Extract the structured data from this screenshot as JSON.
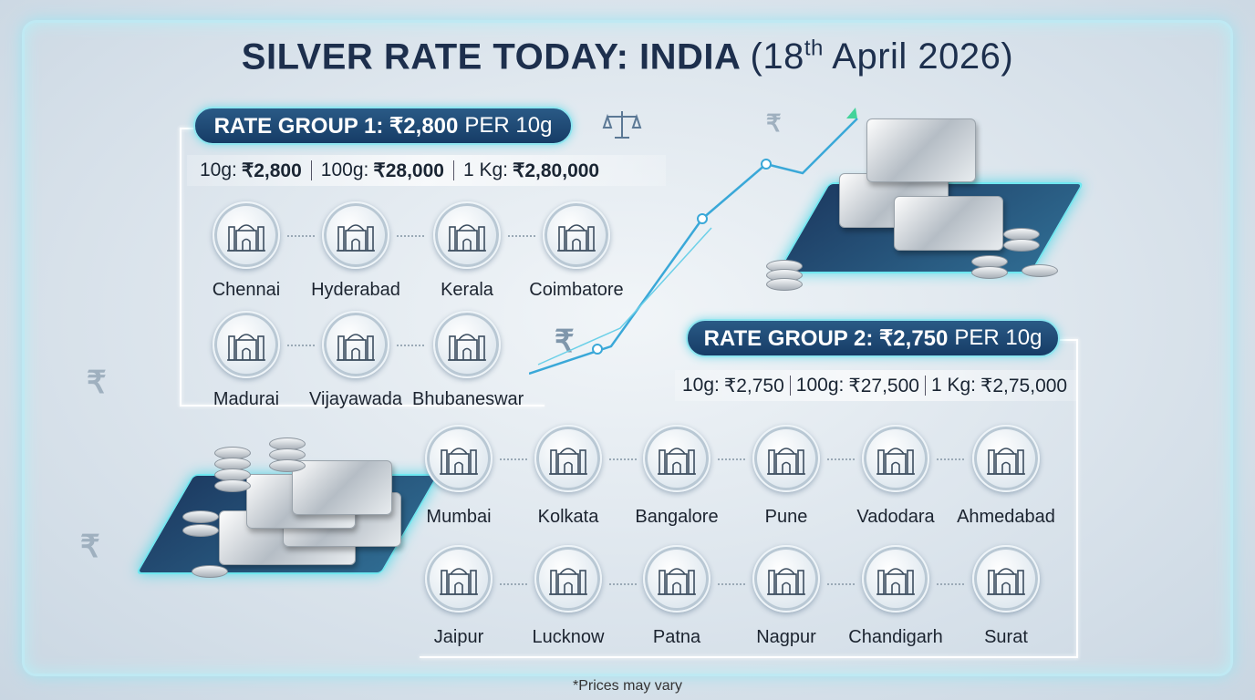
{
  "title": {
    "main": "SILVER RATE TODAY: INDIA",
    "date_prefix": "(18",
    "date_sup": "th",
    "date_suffix": " April 2026)"
  },
  "group1": {
    "label": "RATE GROUP 1: ₹2,800",
    "unit": "PER 10g",
    "prices": [
      {
        "k": "10g:",
        "v": "₹2,800"
      },
      {
        "k": "100g:",
        "v": "₹28,000"
      },
      {
        "k": "1 Kg:",
        "v": "₹2,80,000"
      }
    ],
    "cities": [
      "Chennai",
      "Hyderabad",
      "Kerala",
      "Coimbatore",
      "Madurai",
      "Vijayawada",
      "Bhubaneswar"
    ]
  },
  "group2": {
    "label": "RATE GROUP 2: ₹2,750",
    "unit": "PER 10g",
    "prices": [
      {
        "k": "10g:",
        "v": "₹2,750"
      },
      {
        "k": "100g:",
        "v": "₹27,500"
      },
      {
        "k": "1 Kg:",
        "v": "₹2,75,000"
      }
    ],
    "cities": [
      "Mumbai",
      "Kolkata",
      "Bangalore",
      "Pune",
      "Vadodara",
      "Ahmedabad",
      "Jaipur",
      "Lucknow",
      "Patna",
      "Nagpur",
      "Chandigarh",
      "Surat"
    ]
  },
  "footnote": "*Prices may vary",
  "decor": {
    "rupee": "₹",
    "icons": [
      "scales-icon",
      "silver-bars-icon",
      "coin-stack-icon",
      "chart-arrow-icon"
    ]
  },
  "colors": {
    "pill": "#1d4673",
    "glow": "#8ee6f0",
    "text": "#1d2f4d"
  }
}
